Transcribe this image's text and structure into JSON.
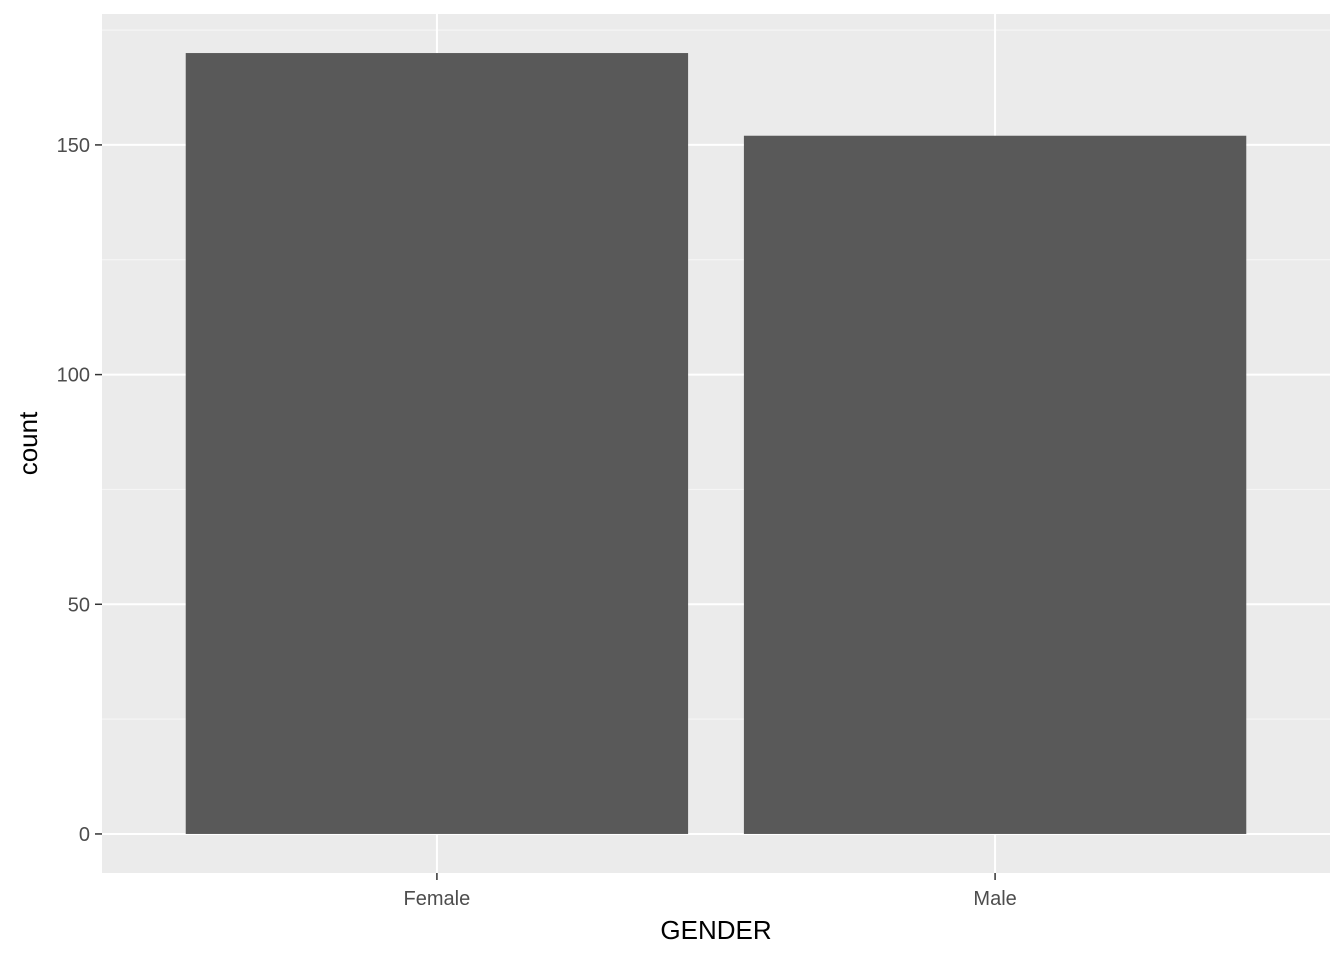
{
  "colors": {
    "panel_background": "#ebebeb",
    "grid_major": "#ffffff",
    "grid_minor": "#f5f5f5",
    "bar_fill": "#595959",
    "tick_text": "#4d4d4d",
    "title_text": "#000000"
  },
  "chart_data": {
    "type": "bar",
    "title": "",
    "xlabel": "GENDER",
    "ylabel": "count",
    "categories": [
      "Female",
      "Male"
    ],
    "values": [
      170,
      152
    ],
    "ylim": [
      -8.5,
      178.5
    ],
    "yticks": [
      0,
      50,
      100,
      150
    ],
    "ytick_labels": [
      "0",
      "50",
      "100",
      "150"
    ],
    "grid": true,
    "legend": "none"
  }
}
